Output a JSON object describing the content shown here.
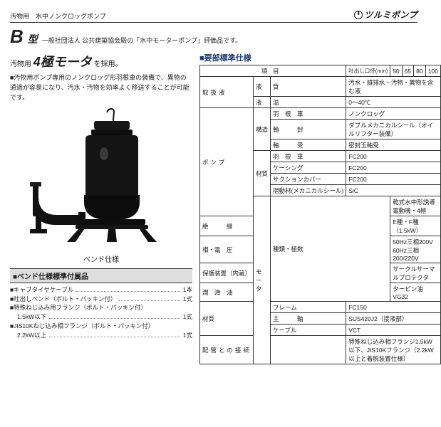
{
  "header": {
    "sewage_tag": "汚物用　水中ノンクロッグポンプ",
    "brand": "ツルミポンプ"
  },
  "title": {
    "model_letter": "B",
    "model_suffix": "型",
    "assoc": "一般社団法人 公共建築協会殿の「水中モーターポンプ」評価品です。"
  },
  "motor": {
    "prefix": "汚物用",
    "big": "4極モータ",
    "suffix": "を採用。"
  },
  "desc": "■汚物用ポンプ専用のノンクロッグ形羽根車の装備で、異物の通過が容易になり、汚水・汚物を効率よく移送することが可能です。",
  "figure_caption": "ベンド仕様",
  "parts_title": "■ベンド仕様標準付属品",
  "parts": [
    {
      "label": "■キャブタイヤケーブル",
      "qty": "1本"
    },
    {
      "label": "■吐出しベンド（ボルト・パッキン付）",
      "qty": "1式"
    },
    {
      "label": "■特殊ねじ込み用フランジ（ボルト・パッキン付）",
      "qty": ""
    },
    {
      "label": "1.5kW以下",
      "qty": "1式",
      "indent": true
    },
    {
      "label": "■JIS10Kねじ込み相フランジ（ボルト・パッキン付）",
      "qty": ""
    },
    {
      "label": "2.2kW以上",
      "qty": "1式",
      "indent": true
    }
  ],
  "spec_title": "■要部標準仕様",
  "spec": {
    "dia_label": "吐出し口径(mm)",
    "dia": [
      "50",
      "65",
      "80",
      "100"
    ],
    "rows": [
      {
        "cat": "取扱液",
        "sub": "液",
        "label": "質",
        "val": "汚水・雑排水・汚物・異物を含む液"
      },
      {
        "sub": "液",
        "label": "温",
        "val": "0〜40℃"
      },
      {
        "cat": "ポンプ",
        "sub": "構造",
        "label": "羽　根　車",
        "val": "ノンクロッグ"
      },
      {
        "label": "軸　　　封",
        "val": "ダブルメカニカルシール（オイルリフター装備）"
      },
      {
        "label": "軸　　　受",
        "val": "密封玉軸受"
      },
      {
        "sub": "材質",
        "label": "羽　根　車",
        "val": "FC200"
      },
      {
        "label": "ケーシング",
        "val": "FC200"
      },
      {
        "label": "サクションカバー",
        "val": "FC200"
      },
      {
        "label": "摺動材(メカニカルシール)",
        "val": "SiC"
      },
      {
        "cat": "モータ",
        "sub": "種類・極数",
        "val": "乾式水中形誘導電動機・4極"
      },
      {
        "label": "絶　　　縁",
        "val": "E種・F種（1.5kW）"
      },
      {
        "label": "相・電　圧",
        "val": "50Hz三相200V 60Hz三相200/220V"
      },
      {
        "label": "保護装置（内蔵）",
        "val": "サークルサーマルプロテクタ"
      },
      {
        "label": "潤　滑　油",
        "val": "タービン油VG32"
      },
      {
        "sub": "材質",
        "label": "フレーム",
        "val": "FC150"
      },
      {
        "label": "主　　　軸",
        "val": "SUS420J2（接液部）"
      },
      {
        "label": "ケーブル",
        "val": "VCT"
      },
      {
        "cat": "配管との接続",
        "val": "特殊ねじ込み相フランジ1.5kW以下、JIS10Kフランジ（2.2kW以上と着脱装置仕様）"
      }
    ]
  },
  "colors": {
    "heading_blue": "#223a7a",
    "border": "#333333",
    "gray_head": "#dedede"
  }
}
